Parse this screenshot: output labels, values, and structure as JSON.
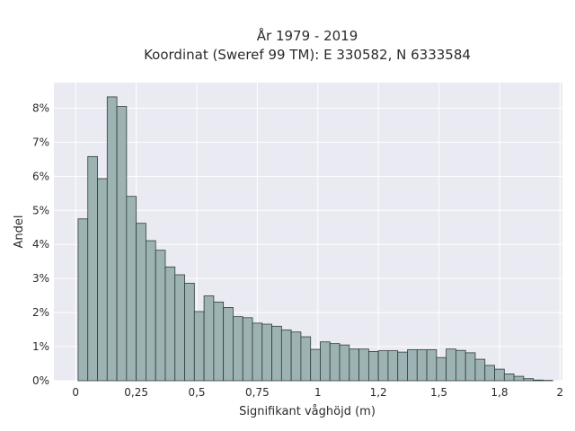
{
  "chart_data": {
    "type": "bar",
    "title": "År 1979 - 2019",
    "subtitle": "Koordinat (Sweref 99 TM): E 330582, N 6333584",
    "xlabel": "Signifikant våghöjd (m)",
    "ylabel": "Andel",
    "x_ticks": [
      {
        "value": 0,
        "label": "0"
      },
      {
        "value": 0.25,
        "label": "0,25"
      },
      {
        "value": 0.5,
        "label": "0,5"
      },
      {
        "value": 0.75,
        "label": "0,75"
      },
      {
        "value": 1,
        "label": "1"
      },
      {
        "value": 1.25,
        "label": "1,2"
      },
      {
        "value": 1.5,
        "label": "1,5"
      },
      {
        "value": 1.75,
        "label": "1,8"
      },
      {
        "value": 2,
        "label": "2"
      }
    ],
    "y_ticks": [
      {
        "value": 0,
        "label": "0%"
      },
      {
        "value": 1,
        "label": "1%"
      },
      {
        "value": 2,
        "label": "2%"
      },
      {
        "value": 3,
        "label": "3%"
      },
      {
        "value": 4,
        "label": "4%"
      },
      {
        "value": 5,
        "label": "5%"
      },
      {
        "value": 6,
        "label": "6%"
      },
      {
        "value": 7,
        "label": "7%"
      },
      {
        "value": 8,
        "label": "8%"
      }
    ],
    "xlim": [
      -0.09,
      2.01
    ],
    "ylim": [
      0,
      8.75
    ],
    "bin_width": 0.04,
    "bin_start": 0.01,
    "values": [
      4.75,
      6.58,
      5.93,
      8.33,
      8.05,
      5.41,
      4.62,
      4.11,
      3.83,
      3.34,
      3.11,
      2.86,
      2.03,
      2.49,
      2.31,
      2.15,
      1.88,
      1.85,
      1.69,
      1.66,
      1.6,
      1.49,
      1.43,
      1.29,
      0.92,
      1.14,
      1.09,
      1.05,
      0.93,
      0.93,
      0.86,
      0.88,
      0.88,
      0.84,
      0.91,
      0.91,
      0.91,
      0.68,
      0.93,
      0.89,
      0.82,
      0.63,
      0.45,
      0.34,
      0.2,
      0.13,
      0.06,
      0.02,
      0.01,
      0.0
    ],
    "grid": true,
    "legend": "none",
    "colors": {
      "bar_fill": "#9db3b3",
      "bar_edge": "#2f3b3b",
      "plot_bg": "#eaeaf2",
      "grid": "#ffffff"
    }
  }
}
